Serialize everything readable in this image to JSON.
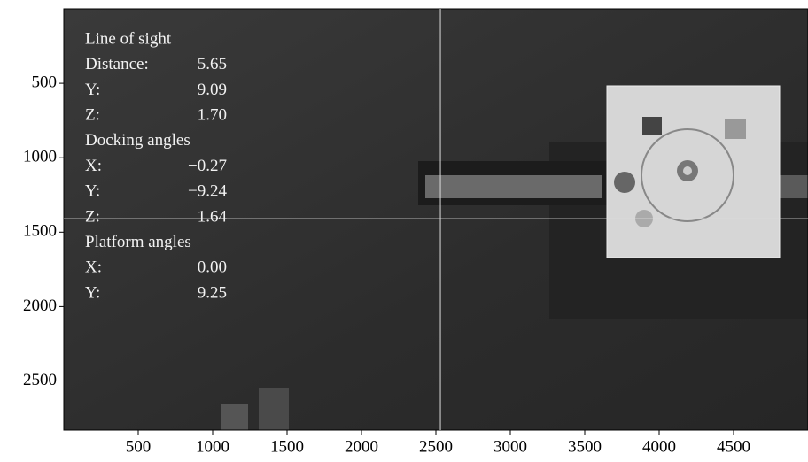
{
  "chart_data": {
    "type": "image",
    "xlim": [
      0,
      5000
    ],
    "ylim": [
      2830,
      0
    ],
    "xticks": [
      500,
      1000,
      1500,
      2000,
      2500,
      3000,
      3500,
      4000,
      4500
    ],
    "yticks": [
      500,
      1000,
      1500,
      2000,
      2500
    ],
    "crosshair": {
      "x": 2530,
      "y": 1410
    },
    "annotations": [
      {
        "heading": "Line of sight",
        "rows": [
          {
            "label": "Distance:",
            "value": "5.65"
          },
          {
            "label": "Y:",
            "value": "9.09"
          },
          {
            "label": "Z:",
            "value": "1.70"
          }
        ]
      },
      {
        "heading": "Docking angles",
        "rows": [
          {
            "label": "X:",
            "value": "−0.27"
          },
          {
            "label": "Y:",
            "value": "−9.24"
          },
          {
            "label": "Z:",
            "value": "1.64"
          }
        ]
      },
      {
        "heading": "Platform angles",
        "rows": [
          {
            "label": "X:",
            "value": "0.00"
          },
          {
            "label": "Y:",
            "value": "9.25"
          }
        ]
      }
    ]
  }
}
